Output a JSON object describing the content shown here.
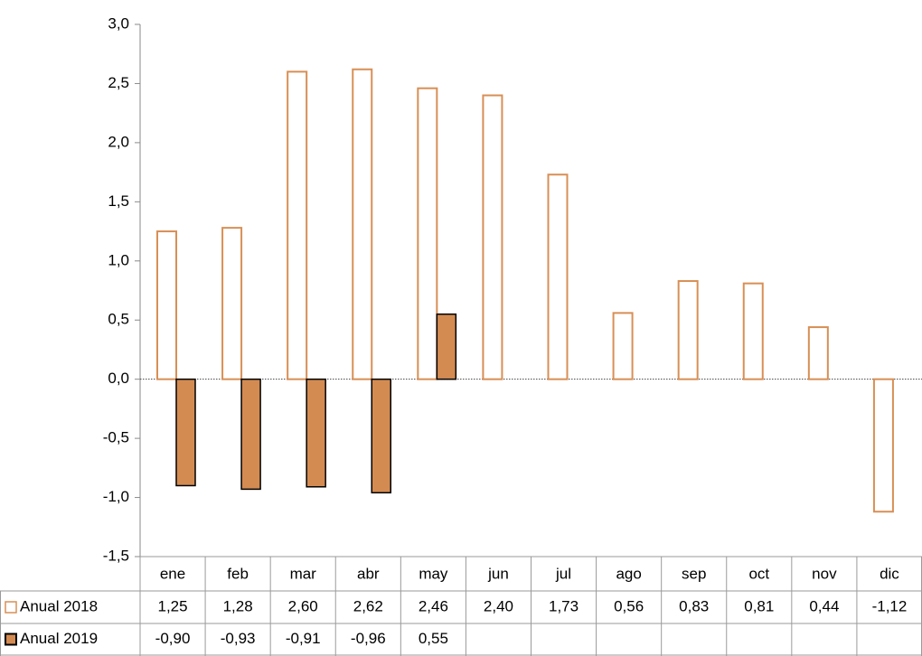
{
  "chart_data": {
    "type": "bar",
    "categories": [
      "ene",
      "feb",
      "mar",
      "abr",
      "may",
      "jun",
      "jul",
      "ago",
      "sep",
      "oct",
      "nov",
      "dic"
    ],
    "series": [
      {
        "name": "Anual 2018",
        "color": "#d88f55",
        "fill": "#ffffff",
        "values": [
          1.25,
          1.28,
          2.6,
          2.62,
          2.46,
          2.4,
          1.73,
          0.56,
          0.83,
          0.81,
          0.44,
          -1.12
        ],
        "value_labels": [
          "1,25",
          "1,28",
          "2,60",
          "2,62",
          "2,46",
          "2,40",
          "1,73",
          "0,56",
          "0,83",
          "0,81",
          "0,44",
          "-1,12"
        ]
      },
      {
        "name": "Anual 2019",
        "color": "#000000",
        "fill": "#d38b52",
        "values": [
          -0.9,
          -0.93,
          -0.91,
          -0.96,
          0.55,
          null,
          null,
          null,
          null,
          null,
          null,
          null
        ],
        "value_labels": [
          "-0,90",
          "-0,93",
          "-0,91",
          "-0,96",
          "0,55",
          null,
          null,
          null,
          null,
          null,
          null,
          null
        ]
      }
    ],
    "ylim": [
      -1.5,
      3.0
    ],
    "yticks": [
      {
        "value": -1.5,
        "label": "-1,5"
      },
      {
        "value": -1.0,
        "label": "-1,0"
      },
      {
        "value": -0.5,
        "label": "-0,5"
      },
      {
        "value": 0,
        "label": "0,0"
      },
      {
        "value": 0.5,
        "label": "0,5"
      },
      {
        "value": 1.0,
        "label": "1,0"
      },
      {
        "value": 1.5,
        "label": "1,5"
      },
      {
        "value": 2.0,
        "label": "2,0"
      },
      {
        "value": 2.5,
        "label": "2,5"
      },
      {
        "value": 3.0,
        "label": "3,0"
      }
    ],
    "legend": "table"
  }
}
